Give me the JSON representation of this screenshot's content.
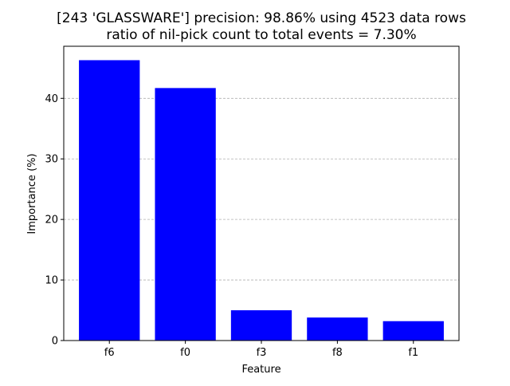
{
  "chart_data": {
    "type": "bar",
    "title_lines": [
      "[243 'GLASSWARE'] precision: 98.86% using 4523 data rows",
      "ratio of nil-pick count to total events = 7.30%"
    ],
    "xlabel": "Feature",
    "ylabel": "Importance (%)",
    "categories": [
      "f6",
      "f0",
      "f3",
      "f8",
      "f1"
    ],
    "values": [
      46.3,
      41.7,
      5.0,
      3.8,
      3.2
    ],
    "ylim": [
      0,
      48.6
    ],
    "yticks": [
      0,
      10,
      20,
      30,
      40
    ],
    "grid": "y-dashed",
    "bar_color": "#0000ff",
    "grid_color": "#b0b0b0"
  }
}
